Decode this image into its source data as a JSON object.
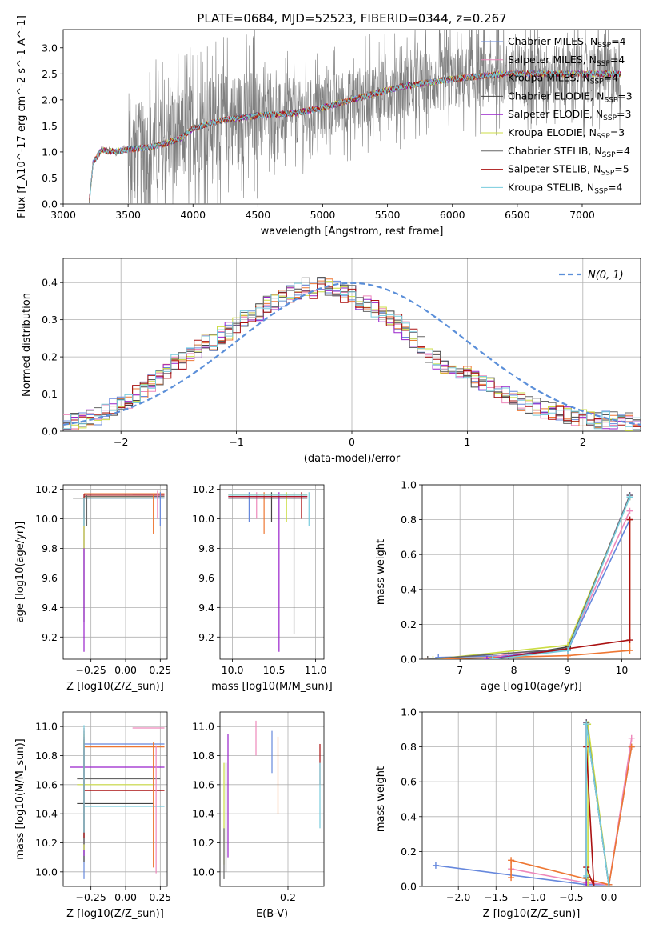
{
  "title": "PLATE=0684, MJD=52523, FIBERID=0344, z=0.267",
  "colors": {
    "Chabrier MILES": "#6688dd",
    "Salpeter MILES": "#ee88bb",
    "Kroupa MILES": "#ee7733",
    "Chabrier ELODIE": "#444444",
    "Salpeter ELODIE": "#9922cc",
    "Kroupa ELODIE": "#ccdd44",
    "Chabrier STELIB": "#666666",
    "Salpeter STELIB": "#aa1111",
    "Kroupa STELIB": "#77ccdd",
    "normal": "#5b8fd9",
    "data": "#808080"
  },
  "chart_data": [
    {
      "id": "spectrum",
      "type": "line",
      "xlabel": "wavelength [Angstrom, rest frame]",
      "ylabel": "Flux [f_λ10^-17 erg cm^-2 s^-1 A^-1]",
      "xlim": [
        3000,
        7450
      ],
      "ylim": [
        0,
        3.35
      ],
      "xticks": [
        "3000",
        "3500",
        "4000",
        "4500",
        "5000",
        "5500",
        "6000",
        "6500",
        "7000"
      ],
      "yticks": [
        "0.0",
        "0.5",
        "1.0",
        "1.5",
        "2.0",
        "2.5",
        "3.0"
      ],
      "legend_position": "top-right",
      "series": [
        {
          "name": "Chabrier MILES, N_SSP=4"
        },
        {
          "name": "Salpeter MILES, N_SSP=4"
        },
        {
          "name": "Kroupa MILES, N_SSP=4"
        },
        {
          "name": "Chabrier ELODIE, N_SSP=3"
        },
        {
          "name": "Salpeter ELODIE, N_SSP=3"
        },
        {
          "name": "Kroupa ELODIE, N_SSP=3"
        },
        {
          "name": "Chabrier STELIB, N_SSP=4"
        },
        {
          "name": "Salpeter STELIB, N_SSP=5"
        },
        {
          "name": "Kroupa STELIB, N_SSP=4"
        }
      ],
      "continuum_wave": [
        3200,
        3230,
        3300,
        3400,
        3500,
        3700,
        3900,
        4000,
        4200,
        4500,
        4800,
        5000,
        5300,
        5600,
        6000,
        6400,
        6800,
        7200,
        7300
      ],
      "continuum_flux": [
        0.0,
        0.8,
        1.05,
        1.0,
        1.05,
        1.1,
        1.25,
        1.45,
        1.6,
        1.7,
        1.75,
        1.85,
        2.05,
        2.25,
        2.4,
        2.5,
        2.5,
        2.5,
        2.5
      ]
    },
    {
      "id": "histogram",
      "type": "line",
      "xlabel": "(data-model)/error",
      "ylabel": "Normed distribution",
      "xlim": [
        -2.5,
        2.5
      ],
      "ylim": [
        0,
        0.465
      ],
      "xticks": [
        "−2",
        "−1",
        "0",
        "1",
        "2"
      ],
      "yticks": [
        "0.0",
        "0.1",
        "0.2",
        "0.3",
        "0.4"
      ],
      "grid": true,
      "legend_position": "top-right",
      "normal_label": "N(0, 1)",
      "bin_width": 0.1,
      "bin_start": -2.5,
      "base_heights": [
        0.02,
        0.025,
        0.03,
        0.035,
        0.04,
        0.05,
        0.065,
        0.075,
        0.08,
        0.1,
        0.11,
        0.13,
        0.14,
        0.16,
        0.19,
        0.19,
        0.21,
        0.22,
        0.24,
        0.24,
        0.26,
        0.27,
        0.29,
        0.3,
        0.32,
        0.32,
        0.34,
        0.35,
        0.36,
        0.37,
        0.38,
        0.39,
        0.38,
        0.4,
        0.39,
        0.38,
        0.37,
        0.37,
        0.35,
        0.34,
        0.33,
        0.31,
        0.3,
        0.29,
        0.27,
        0.25,
        0.23,
        0.21,
        0.19,
        0.18,
        0.17,
        0.16,
        0.15,
        0.14,
        0.13,
        0.12,
        0.11,
        0.1,
        0.09,
        0.08,
        0.07,
        0.065,
        0.06,
        0.055,
        0.05,
        0.045,
        0.04,
        0.035,
        0.03,
        0.03,
        0.03,
        0.03,
        0.025,
        0.025,
        0.025
      ]
    },
    {
      "id": "age-vs-Z",
      "type": "scatter",
      "xlabel": "Z [log10(Z/Z_sun)]",
      "ylabel": "age [log10(age/yr)]",
      "xlim": [
        -0.45,
        0.3
      ],
      "ylim": [
        9.05,
        10.23
      ],
      "xticks": [
        "−0.25",
        "0.00",
        "0.25"
      ],
      "yticks": [
        "9.2",
        "9.4",
        "9.6",
        "9.8",
        "10.0",
        "10.2"
      ],
      "grid": true
    },
    {
      "id": "age-vs-mass",
      "type": "scatter",
      "xlabel": "mass [log10(M/M_sun)]",
      "ylabel": "",
      "xlim": [
        9.85,
        11.1
      ],
      "ylim": [
        9.05,
        10.23
      ],
      "xticks": [
        "10.0",
        "10.5",
        "11.0"
      ],
      "yticks": [
        "9.2",
        "9.4",
        "9.6",
        "9.8",
        "10.0",
        "10.2"
      ],
      "grid": true
    },
    {
      "id": "weight-vs-age",
      "type": "line",
      "xlabel": "age [log10(age/yr)]",
      "ylabel": "mass weight",
      "xlim": [
        6.3,
        10.35
      ],
      "ylim": [
        0,
        1.0
      ],
      "xticks": [
        "7",
        "8",
        "9",
        "10"
      ],
      "yticks": [
        "0.0",
        "0.2",
        "0.4",
        "0.6",
        "0.8",
        "1.0"
      ],
      "grid": true
    },
    {
      "id": "mass-vs-Z",
      "type": "scatter",
      "xlabel": "Z [log10(Z/Z_sun)]",
      "ylabel": "mass [log10(M/M_sun)]",
      "xlim": [
        -0.45,
        0.3
      ],
      "ylim": [
        9.9,
        11.1
      ],
      "xticks": [
        "−0.25",
        "0.00",
        "0.25"
      ],
      "yticks": [
        "10.0",
        "10.2",
        "10.4",
        "10.6",
        "10.8",
        "11.0"
      ],
      "grid": true
    },
    {
      "id": "mass-vs-ebv",
      "type": "scatter",
      "xlabel": "E(B-V)",
      "ylabel": "",
      "xlim": [
        0.03,
        0.29
      ],
      "ylim": [
        9.9,
        11.1
      ],
      "xticks": [
        "0.2"
      ],
      "yticks": [
        "10.0",
        "10.2",
        "10.4",
        "10.6",
        "10.8",
        "11.0"
      ],
      "grid": true
    },
    {
      "id": "weight-vs-Z",
      "type": "line",
      "xlabel": "Z [log10(Z/Z_sun)]",
      "ylabel": "mass weight",
      "xlim": [
        -2.48,
        0.42
      ],
      "ylim": [
        0,
        1.0
      ],
      "xticks": [
        "−2.0",
        "−1.5",
        "−1.0",
        "−0.5",
        "0.0"
      ],
      "yticks": [
        "0.0",
        "0.2",
        "0.4",
        "0.6",
        "0.8",
        "1.0"
      ],
      "grid": true
    }
  ],
  "models": [
    {
      "key": "Chabrier MILES",
      "age_lines": [
        [
          -0.3,
          10.14,
          0.28,
          10.14
        ]
      ],
      "age_v": [
        [
          0.25,
          9.95,
          0.25,
          10.18
        ]
      ],
      "mass_h": [
        [
          -0.3,
          10.88,
          0.28,
          10.88
        ]
      ],
      "ebv": [
        [
          0.16,
          10.68,
          0.16,
          10.97
        ]
      ],
      "wa": [
        [
          6.6,
          0.01
        ],
        [
          7.9,
          0.02
        ],
        [
          9.0,
          0.05
        ],
        [
          10.15,
          0.8
        ]
      ],
      "wz": [
        [
          -2.3,
          0.12
        ],
        [
          -0.3,
          0.01
        ],
        [
          0.0,
          0.01
        ],
        [
          0.3,
          0.8
        ]
      ]
    },
    {
      "key": "Salpeter MILES",
      "age_lines": [
        [
          0.05,
          10.16,
          0.28,
          10.16
        ]
      ],
      "age_v": [
        [
          0.23,
          10.0,
          0.23,
          10.19
        ]
      ],
      "mass_h": [
        [
          0.05,
          10.99,
          0.28,
          10.99
        ]
      ],
      "ebv": [
        [
          0.12,
          10.8,
          0.12,
          11.04
        ]
      ],
      "wa": [
        [
          7.6,
          0.01
        ],
        [
          7.9,
          0.03
        ],
        [
          9.0,
          0.06
        ],
        [
          10.15,
          0.85
        ]
      ],
      "wz": [
        [
          -1.3,
          0.1
        ],
        [
          -0.3,
          0.02
        ],
        [
          0.0,
          0.01
        ],
        [
          0.3,
          0.85
        ]
      ]
    },
    {
      "key": "Kroupa MILES",
      "age_lines": [
        [
          -0.3,
          10.17,
          0.28,
          10.17
        ]
      ],
      "age_v": [
        [
          0.2,
          9.9,
          0.2,
          10.17
        ]
      ],
      "mass_h": [
        [
          -0.3,
          10.86,
          0.28,
          10.86
        ]
      ],
      "ebv": [
        [
          0.175,
          10.4,
          0.175,
          10.93
        ]
      ],
      "wa": [
        [
          6.4,
          0.0
        ],
        [
          9.0,
          0.02
        ],
        [
          10.15,
          0.05
        ],
        [
          10.15,
          0.8
        ]
      ],
      "wz": [
        [
          -1.3,
          0.05
        ],
        [
          -1.3,
          0.15
        ],
        [
          0.0,
          0.01
        ],
        [
          0.3,
          0.8
        ]
      ]
    },
    {
      "key": "Chabrier ELODIE",
      "age_lines": [
        [
          -0.38,
          10.14,
          0.2,
          10.14
        ]
      ],
      "age_v": [
        [
          -0.3,
          9.3,
          -0.3,
          10.14
        ]
      ],
      "mass_h": [
        [
          -0.35,
          10.47,
          0.2,
          10.47
        ]
      ],
      "ebv": [
        [
          0.045,
          10.0,
          0.045,
          10.75
        ]
      ],
      "wa": [
        [
          7.6,
          0.0
        ],
        [
          9.0,
          0.07
        ],
        [
          10.15,
          0.93
        ]
      ],
      "wz": [
        [
          -0.3,
          0.0
        ],
        [
          -0.3,
          0.93
        ],
        [
          0.0,
          0.0
        ]
      ]
    },
    {
      "key": "Salpeter ELODIE",
      "age_lines": [
        [
          -0.3,
          10.15,
          0.25,
          10.15
        ]
      ],
      "age_v": [
        [
          -0.3,
          9.1,
          -0.3,
          10.15
        ]
      ],
      "mass_h": [
        [
          -0.4,
          10.72,
          0.28,
          10.72
        ]
      ],
      "ebv": [
        [
          0.05,
          10.1,
          0.05,
          10.95
        ]
      ],
      "wa": [
        [
          7.5,
          0.0
        ],
        [
          9.0,
          0.06
        ],
        [
          10.15,
          0.94
        ]
      ],
      "wz": [
        [
          -0.3,
          0.0
        ],
        [
          -0.3,
          0.94
        ],
        [
          0.0,
          0.0
        ]
      ]
    },
    {
      "key": "Kroupa ELODIE",
      "age_lines": [
        [
          -0.3,
          10.15,
          0.2,
          10.15
        ]
      ],
      "age_v": [
        [
          -0.3,
          9.8,
          -0.3,
          10.15
        ]
      ],
      "mass_h": [
        [
          -0.35,
          10.6,
          0.2,
          10.6
        ]
      ],
      "ebv": [
        [
          0.04,
          10.05,
          0.04,
          10.75
        ]
      ],
      "wa": [
        [
          6.5,
          0.0
        ],
        [
          9.0,
          0.08
        ],
        [
          10.15,
          0.93
        ]
      ],
      "wz": [
        [
          -0.28,
          0.0
        ],
        [
          -0.28,
          0.93
        ],
        [
          0.0,
          0.0
        ]
      ]
    },
    {
      "key": "Chabrier STELIB",
      "age_lines": [
        [
          -0.3,
          10.15,
          0.28,
          10.15
        ]
      ],
      "age_v": [
        [
          -0.28,
          9.95,
          -0.28,
          10.16
        ]
      ],
      "mass_h": [
        [
          -0.35,
          10.64,
          0.25,
          10.64
        ]
      ],
      "ebv": [
        [
          0.04,
          9.95,
          0.04,
          10.3
        ]
      ],
      "wa": [
        [
          6.4,
          0.0
        ],
        [
          9.0,
          0.06
        ],
        [
          10.15,
          0.94
        ]
      ],
      "wz": [
        [
          -0.3,
          0.05
        ],
        [
          -0.3,
          0.94
        ],
        [
          0.0,
          0.0
        ]
      ]
    },
    {
      "key": "Salpeter STELIB",
      "age_lines": [
        [
          -0.3,
          10.16,
          0.28,
          10.16
        ]
      ],
      "age_v": [
        [
          -0.3,
          10.0,
          -0.3,
          10.17
        ]
      ],
      "mass_h": [
        [
          -0.3,
          10.56,
          0.28,
          10.56
        ]
      ],
      "ebv": [
        [
          0.28,
          10.6,
          0.28,
          10.88
        ]
      ],
      "wa": [
        [
          7.6,
          0.0
        ],
        [
          10.15,
          0.11
        ],
        [
          10.15,
          0.8
        ]
      ],
      "wz": [
        [
          -0.3,
          0.11
        ],
        [
          -0.2,
          0.0
        ],
        [
          -0.3,
          0.8
        ]
      ]
    },
    {
      "key": "Kroupa STELIB",
      "age_lines": [
        [
          -0.3,
          10.14,
          0.28,
          10.14
        ]
      ],
      "age_v": [
        [
          -0.3,
          9.95,
          -0.3,
          10.14
        ]
      ],
      "mass_h": [
        [
          -0.3,
          10.45,
          0.28,
          10.45
        ]
      ],
      "ebv": [
        [
          0.28,
          10.3,
          0.28,
          10.75
        ]
      ],
      "wa": [
        [
          7.6,
          0.0
        ],
        [
          9.0,
          0.05
        ],
        [
          10.15,
          0.93
        ]
      ],
      "wz": [
        [
          -0.3,
          0.06
        ],
        [
          -0.3,
          0.93
        ],
        [
          0.0,
          0.0
        ]
      ]
    }
  ]
}
